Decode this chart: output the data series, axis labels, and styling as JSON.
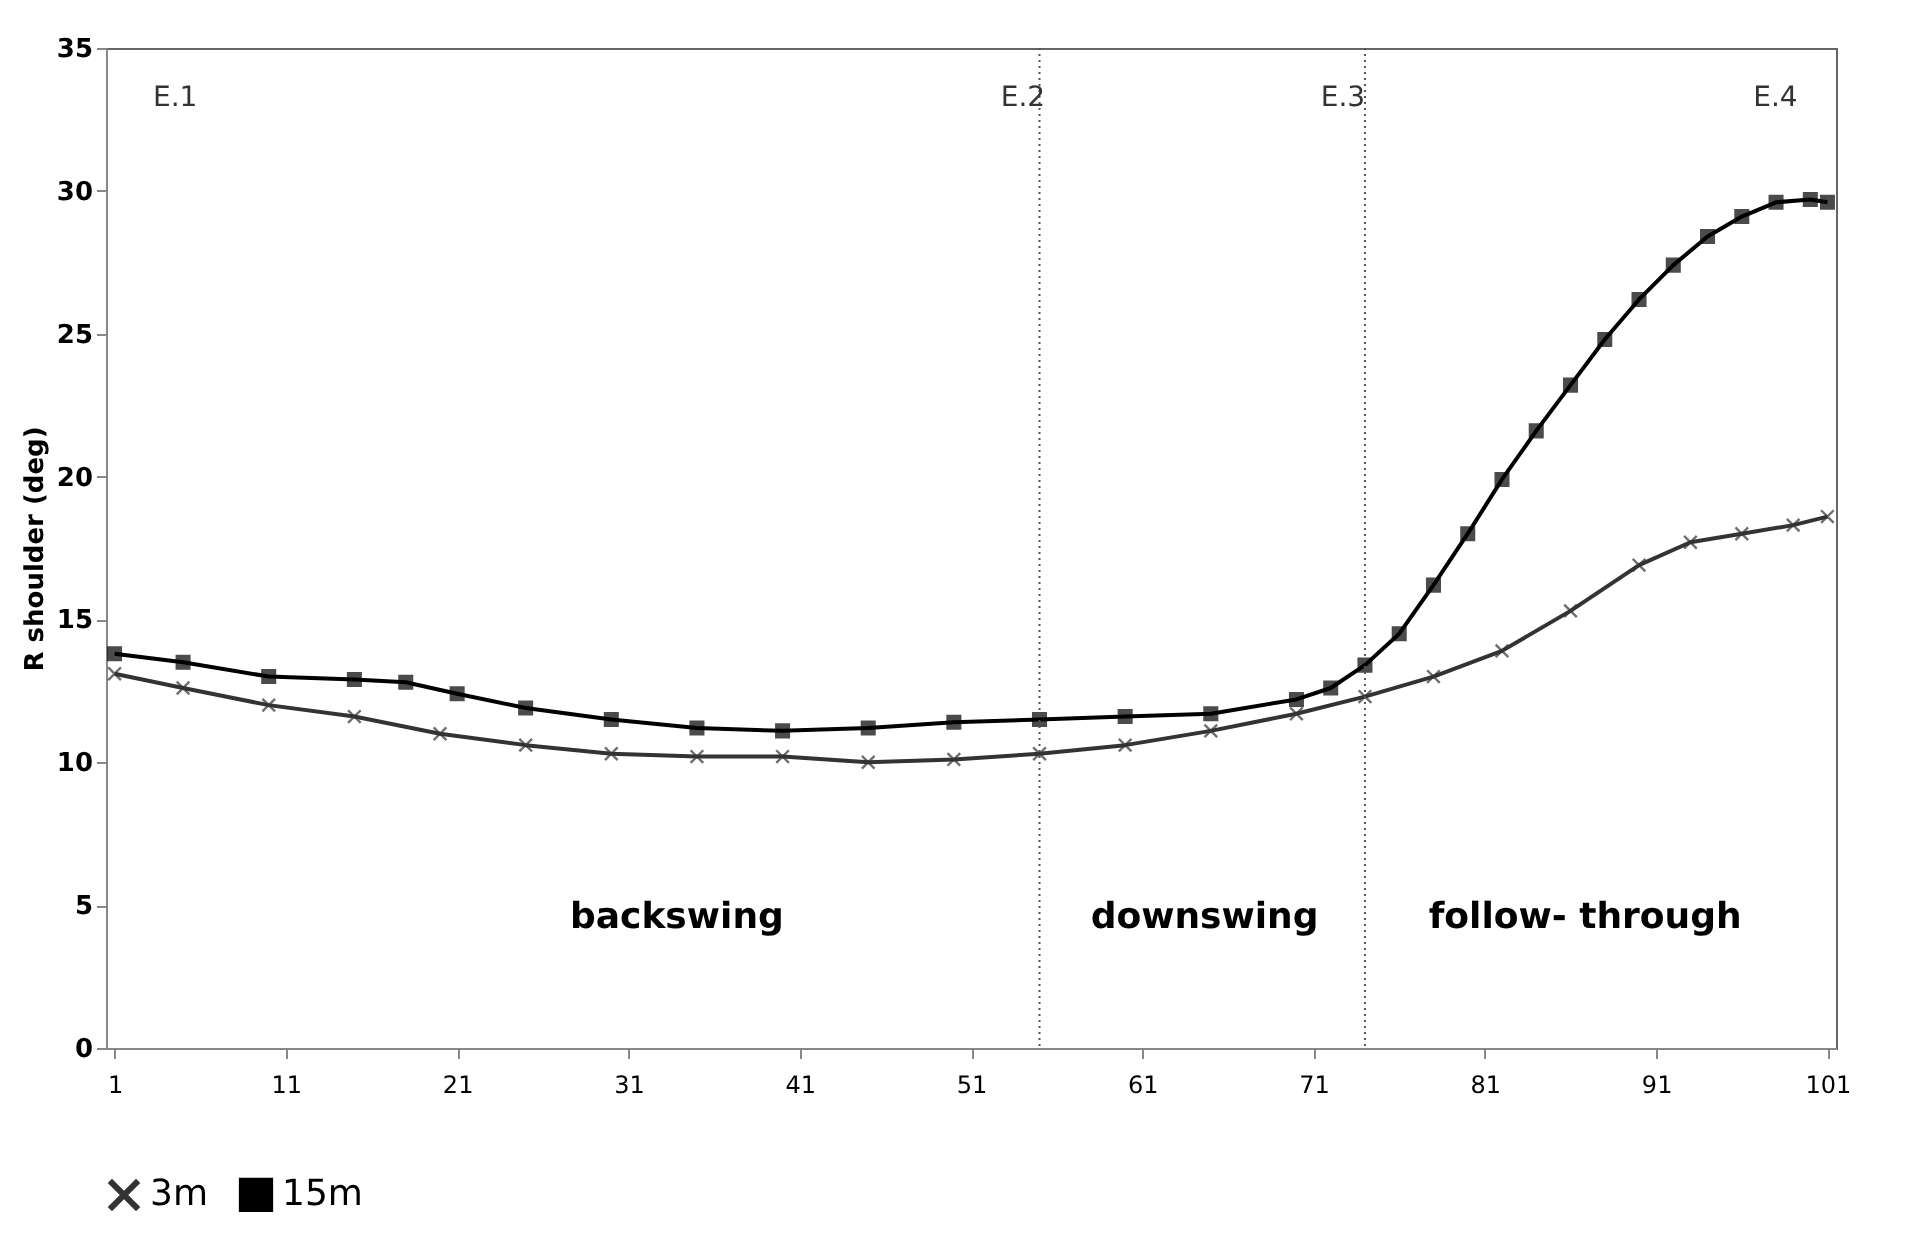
{
  "chart_data": {
    "type": "line",
    "ylabel": "R shoulder (deg)",
    "xlim": [
      0.5,
      101.5
    ],
    "xticks": [
      1,
      11,
      21,
      31,
      41,
      51,
      61,
      71,
      81,
      91,
      101
    ],
    "ylim": [
      0,
      35
    ],
    "yticks": [
      0,
      5,
      10,
      15,
      20,
      25,
      30,
      35
    ],
    "grid": false,
    "legend": "bottom",
    "series": [
      {
        "name": "3m",
        "color": "#333333",
        "marker": "cross",
        "x": [
          1,
          5,
          10,
          15,
          20,
          25,
          30,
          35,
          40,
          45,
          50,
          55,
          60,
          65,
          70,
          74,
          78,
          82,
          86,
          90,
          93,
          96,
          99,
          101
        ],
        "values": [
          13.1,
          12.6,
          12.0,
          11.6,
          11.0,
          10.6,
          10.3,
          10.2,
          10.2,
          10.0,
          10.1,
          10.3,
          10.6,
          11.1,
          11.7,
          12.3,
          13.0,
          13.9,
          15.3,
          16.9,
          17.7,
          18.0,
          18.3,
          18.6
        ]
      },
      {
        "name": "15m",
        "color": "#000000",
        "marker": "square",
        "x": [
          1,
          5,
          10,
          15,
          18,
          21,
          25,
          30,
          35,
          40,
          45,
          50,
          55,
          60,
          65,
          70,
          72,
          74,
          76,
          78,
          80,
          82,
          84,
          86,
          88,
          90,
          92,
          94,
          96,
          98,
          100,
          101
        ],
        "values": [
          13.8,
          13.5,
          13.0,
          12.9,
          12.8,
          12.4,
          11.9,
          11.5,
          11.2,
          11.1,
          11.2,
          11.4,
          11.5,
          11.6,
          11.7,
          12.2,
          12.6,
          13.4,
          14.5,
          16.2,
          18.0,
          19.9,
          21.6,
          23.2,
          24.8,
          26.2,
          27.4,
          28.4,
          29.1,
          29.6,
          29.7,
          29.6
        ]
      }
    ],
    "ref_lines": [
      {
        "axis": "x",
        "value": 55,
        "line_style": "dotted",
        "color": "#555555"
      },
      {
        "axis": "x",
        "value": 74,
        "line_style": "dotted",
        "color": "#555555"
      }
    ],
    "annotations": [
      "E.1",
      "E.2",
      "E.3",
      "E.4",
      "backswing",
      "downswing",
      "follow- through"
    ]
  }
}
